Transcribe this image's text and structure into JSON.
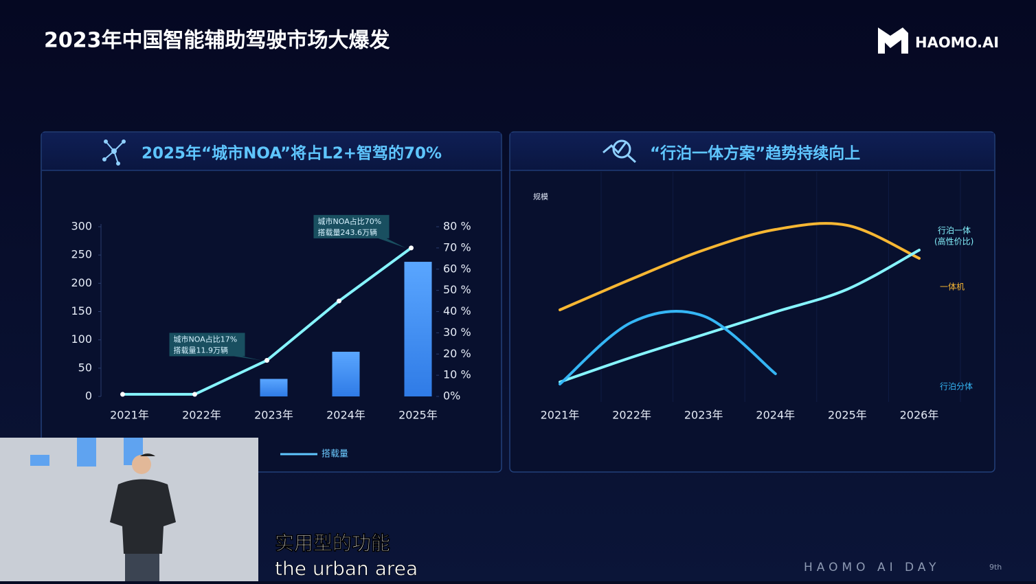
{
  "header": {
    "title": "2023年中国智能辅助驾驶市场大爆发",
    "logo": "HAOMO.AI"
  },
  "chart_data": [
    {
      "type": "bar-line",
      "title": "2025年“城市NOA”将占L2+智驾的70%",
      "categories": [
        "2021年",
        "2022年",
        "2023年",
        "2024年",
        "2025年"
      ],
      "series": [
        {
          "color": "#3f93f5",
          "values": [
            null,
            null,
            31,
            79,
            238
          ]
        },
        {
          "name": "搭载量",
          "color": "#86f4ff",
          "axis": "y2",
          "values": [
            1,
            1,
            17,
            45,
            70
          ]
        }
      ],
      "ylim": [
        0,
        300
      ],
      "yticks": [
        0,
        50,
        100,
        150,
        200,
        250,
        300
      ],
      "y2lim": [
        0,
        80
      ],
      "y2ticks": [
        {
          "value": 0,
          "label": "0%"
        },
        {
          "value": 10,
          "label": "10 %"
        },
        {
          "value": 20,
          "label": "20 %"
        },
        {
          "value": 30,
          "label": "30 %"
        },
        {
          "value": 40,
          "label": "40 %"
        },
        {
          "value": 50,
          "label": "50 %"
        },
        {
          "value": 60,
          "label": "60 %"
        },
        {
          "value": 70,
          "label": "70 %"
        },
        {
          "value": 80,
          "label": "80 %"
        }
      ],
      "annotations": [
        {
          "lines": [
            "城市NOA占比17%",
            "搭载量11.9万辆"
          ],
          "category": 2
        },
        {
          "lines": [
            "城市NOA占比70%",
            "搭载量243.6万辆"
          ],
          "category": 4
        }
      ]
    },
    {
      "type": "line",
      "title": "“行泊一体方案”趋势持续向上",
      "y_label": "规模",
      "categories": [
        "2021年",
        "2022年",
        "2023年",
        "2024年",
        "2025年",
        "2026年"
      ],
      "ylim": [
        0,
        100
      ],
      "series": [
        {
          "name": "一体机",
          "color": "#f7b733",
          "values": [
            43,
            58,
            72,
            82,
            84,
            68
          ]
        },
        {
          "name": "行泊一体",
          "note": "(高性价比)",
          "color": "#86f4ff",
          "values": [
            8,
            20,
            31,
            42,
            53,
            72
          ]
        },
        {
          "name": "行泊分体",
          "color": "#35b6f5",
          "values": [
            7,
            37,
            40,
            12,
            null,
            null
          ]
        }
      ]
    }
  ],
  "captions": [
    "实用型的功能",
    "the urban area"
  ],
  "footer": {
    "brand": "HAOMO AI DAY",
    "edition": "9th"
  }
}
